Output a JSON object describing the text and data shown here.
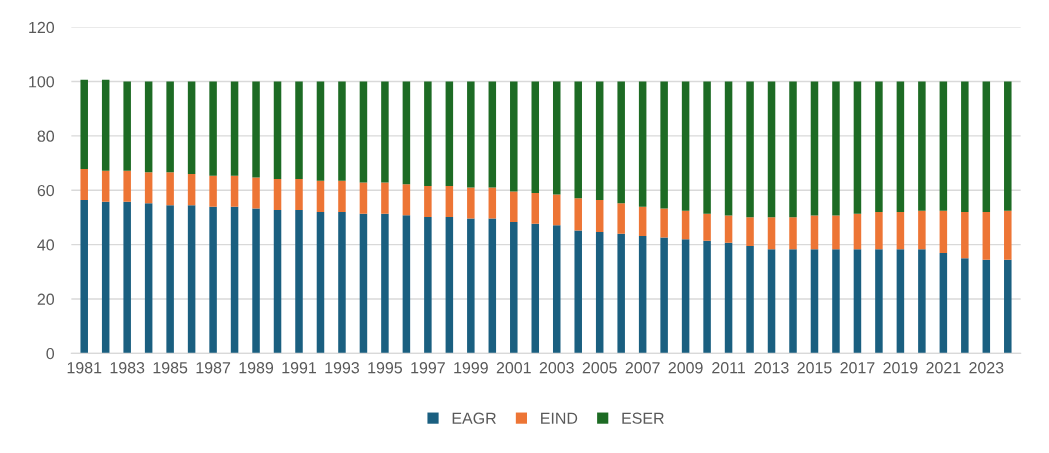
{
  "chart_data": {
    "type": "bar",
    "stacked": true,
    "categories": [
      "1981",
      null,
      "1983",
      null,
      "1985",
      null,
      "1987",
      null,
      "1989",
      null,
      "1991",
      null,
      "1993",
      null,
      "1995",
      null,
      "1997",
      null,
      "1999",
      null,
      "2001",
      null,
      "2003",
      null,
      "2005",
      null,
      "2007",
      null,
      "2009",
      null,
      "2011",
      null,
      "2013",
      null,
      "2015",
      null,
      "2017",
      null,
      "2019",
      null,
      "2021",
      null,
      "2023",
      null
    ],
    "series": [
      {
        "name": "EAGR",
        "color": "#1a5f80",
        "values": [
          56.4,
          55.8,
          55.8,
          55.2,
          54.5,
          54.5,
          53.9,
          53.9,
          53.3,
          52.7,
          52.7,
          52.0,
          52.0,
          51.4,
          51.4,
          50.8,
          50.2,
          50.2,
          49.6,
          49.6,
          48.3,
          47.7,
          47.1,
          45.2,
          44.6,
          44.0,
          43.2,
          42.6,
          42.0,
          41.4,
          40.7,
          39.5,
          38.3,
          38.3,
          38.3,
          38.3,
          38.3,
          38.3,
          38.3,
          38.3,
          36.9,
          35.0,
          34.4,
          34.4
        ]
      },
      {
        "name": "EIND",
        "color": "#ed7535",
        "values": [
          11.4,
          11.4,
          11.4,
          11.4,
          12.1,
          11.5,
          11.4,
          11.4,
          11.4,
          11.4,
          11.4,
          11.5,
          11.5,
          11.5,
          11.5,
          11.4,
          11.4,
          11.4,
          11.4,
          11.4,
          11.2,
          11.3,
          11.3,
          11.9,
          11.8,
          11.2,
          10.7,
          10.7,
          10.5,
          10.0,
          10.0,
          10.6,
          11.8,
          11.8,
          12.4,
          12.4,
          13.1,
          13.7,
          13.7,
          14.2,
          15.6,
          17.0,
          17.6,
          18.1
        ]
      },
      {
        "name": "ESER",
        "color": "#1d6b24",
        "values": [
          32.9,
          33.5,
          32.8,
          33.4,
          33.4,
          34.0,
          34.7,
          34.7,
          35.3,
          35.9,
          35.9,
          36.5,
          36.5,
          37.1,
          37.1,
          37.8,
          38.4,
          38.4,
          39.0,
          39.0,
          40.5,
          41.0,
          41.6,
          42.9,
          43.6,
          44.8,
          46.1,
          46.7,
          47.5,
          48.6,
          49.3,
          49.9,
          49.9,
          49.9,
          49.3,
          49.3,
          48.6,
          48.0,
          48.0,
          47.5,
          47.5,
          48.0,
          48.0,
          47.5
        ]
      }
    ],
    "ylim": [
      0,
      120
    ],
    "yticks": [
      0,
      20,
      40,
      60,
      80,
      100,
      120
    ],
    "grid": "y",
    "legend": "bottom"
  }
}
